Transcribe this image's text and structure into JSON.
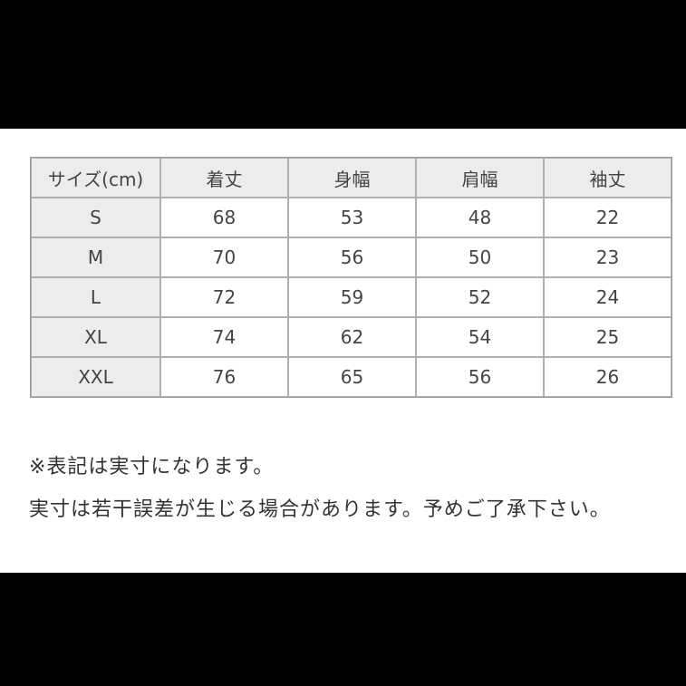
{
  "table": {
    "headers": [
      "サイズ(cm)",
      "着丈",
      "身幅",
      "肩幅",
      "袖丈"
    ],
    "rows": [
      [
        "S",
        "68",
        "53",
        "48",
        "22"
      ],
      [
        "M",
        "70",
        "56",
        "50",
        "23"
      ],
      [
        "L",
        "72",
        "59",
        "52",
        "24"
      ],
      [
        "XL",
        "74",
        "62",
        "54",
        "25"
      ],
      [
        "XXL",
        "76",
        "65",
        "56",
        "26"
      ]
    ]
  },
  "notes": [
    "※表記は実寸になります。",
    "実寸は若干誤差が生じる場合があります。予めご了承下さい。"
  ]
}
